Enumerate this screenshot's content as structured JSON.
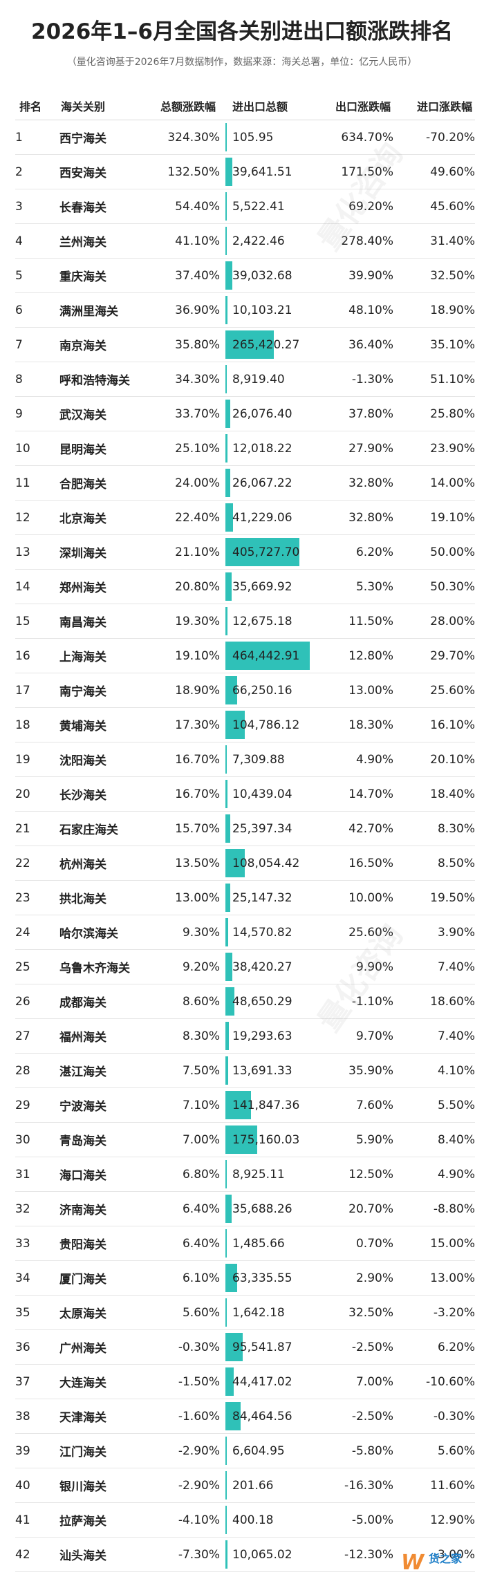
{
  "title": "2026年1–6月全国各关别进出口额涨跌排名",
  "subtitle": "（量化咨询基于2026年7月数据制作，数据来源：海关总署，单位：亿元人民币）",
  "headers": {
    "rank": "排名",
    "name": "海关关别",
    "total_change": "总额涨跌幅",
    "total_value": "进出口总额",
    "export_change": "出口涨跌幅",
    "import_change": "进口涨跌幅"
  },
  "colors": {
    "bar": "#2fc1b8",
    "rank_text": "#2aa9a5"
  },
  "bar_max_value": 464442.91,
  "rows": [
    {
      "rank": "1",
      "name": "西宁海关",
      "total_change": "324.30%",
      "value": 105.95,
      "value_text": "105.95",
      "export": "634.70%",
      "import": "-70.20%"
    },
    {
      "rank": "2",
      "name": "西安海关",
      "total_change": "132.50%",
      "value": 39641.51,
      "value_text": "39,641.51",
      "export": "171.50%",
      "import": "49.60%"
    },
    {
      "rank": "3",
      "name": "长春海关",
      "total_change": "54.40%",
      "value": 5522.41,
      "value_text": "5,522.41",
      "export": "69.20%",
      "import": "45.60%"
    },
    {
      "rank": "4",
      "name": "兰州海关",
      "total_change": "41.10%",
      "value": 2422.46,
      "value_text": "2,422.46",
      "export": "278.40%",
      "import": "31.40%"
    },
    {
      "rank": "5",
      "name": "重庆海关",
      "total_change": "37.40%",
      "value": 39032.68,
      "value_text": "39,032.68",
      "export": "39.90%",
      "import": "32.50%"
    },
    {
      "rank": "6",
      "name": "满洲里海关",
      "total_change": "36.90%",
      "value": 10103.21,
      "value_text": "10,103.21",
      "export": "48.10%",
      "import": "18.90%"
    },
    {
      "rank": "7",
      "name": "南京海关",
      "total_change": "35.80%",
      "value": 265420.27,
      "value_text": "265,420.27",
      "export": "36.40%",
      "import": "35.10%"
    },
    {
      "rank": "8",
      "name": "呼和浩特海关",
      "total_change": "34.30%",
      "value": 8919.4,
      "value_text": "8,919.40",
      "export": "-1.30%",
      "import": "51.10%"
    },
    {
      "rank": "9",
      "name": "武汉海关",
      "total_change": "33.70%",
      "value": 26076.4,
      "value_text": "26,076.40",
      "export": "37.80%",
      "import": "25.80%"
    },
    {
      "rank": "10",
      "name": "昆明海关",
      "total_change": "25.10%",
      "value": 12018.22,
      "value_text": "12,018.22",
      "export": "27.90%",
      "import": "23.90%"
    },
    {
      "rank": "11",
      "name": "合肥海关",
      "total_change": "24.00%",
      "value": 26067.22,
      "value_text": "26,067.22",
      "export": "32.80%",
      "import": "14.00%"
    },
    {
      "rank": "12",
      "name": "北京海关",
      "total_change": "22.40%",
      "value": 41229.06,
      "value_text": "41,229.06",
      "export": "32.80%",
      "import": "19.10%"
    },
    {
      "rank": "13",
      "name": "深圳海关",
      "total_change": "21.10%",
      "value": 405727.7,
      "value_text": "405,727.70",
      "export": "6.20%",
      "import": "50.00%"
    },
    {
      "rank": "14",
      "name": "郑州海关",
      "total_change": "20.80%",
      "value": 35669.92,
      "value_text": "35,669.92",
      "export": "5.30%",
      "import": "50.30%"
    },
    {
      "rank": "15",
      "name": "南昌海关",
      "total_change": "19.30%",
      "value": 12675.18,
      "value_text": "12,675.18",
      "export": "11.50%",
      "import": "28.00%"
    },
    {
      "rank": "16",
      "name": "上海海关",
      "total_change": "19.10%",
      "value": 464442.91,
      "value_text": "464,442.91",
      "export": "12.80%",
      "import": "29.70%"
    },
    {
      "rank": "17",
      "name": "南宁海关",
      "total_change": "18.90%",
      "value": 66250.16,
      "value_text": "66,250.16",
      "export": "13.00%",
      "import": "25.60%"
    },
    {
      "rank": "18",
      "name": "黄埔海关",
      "total_change": "17.30%",
      "value": 104786.12,
      "value_text": "104,786.12",
      "export": "18.30%",
      "import": "16.10%"
    },
    {
      "rank": "19",
      "name": "沈阳海关",
      "total_change": "16.70%",
      "value": 7309.88,
      "value_text": "7,309.88",
      "export": "4.90%",
      "import": "20.10%"
    },
    {
      "rank": "20",
      "name": "长沙海关",
      "total_change": "16.70%",
      "value": 10439.04,
      "value_text": "10,439.04",
      "export": "14.70%",
      "import": "18.40%"
    },
    {
      "rank": "21",
      "name": "石家庄海关",
      "total_change": "15.70%",
      "value": 25397.34,
      "value_text": "25,397.34",
      "export": "42.70%",
      "import": "8.30%"
    },
    {
      "rank": "22",
      "name": "杭州海关",
      "total_change": "13.50%",
      "value": 108054.42,
      "value_text": "108,054.42",
      "export": "16.50%",
      "import": "8.50%"
    },
    {
      "rank": "23",
      "name": "拱北海关",
      "total_change": "13.00%",
      "value": 25147.32,
      "value_text": "25,147.32",
      "export": "10.00%",
      "import": "19.50%"
    },
    {
      "rank": "24",
      "name": "哈尔滨海关",
      "total_change": "9.30%",
      "value": 14570.82,
      "value_text": "14,570.82",
      "export": "25.60%",
      "import": "3.90%"
    },
    {
      "rank": "25",
      "name": "乌鲁木齐海关",
      "total_change": "9.20%",
      "value": 38420.27,
      "value_text": "38,420.27",
      "export": "9.90%",
      "import": "7.40%"
    },
    {
      "rank": "26",
      "name": "成都海关",
      "total_change": "8.60%",
      "value": 48650.29,
      "value_text": "48,650.29",
      "export": "-1.10%",
      "import": "18.60%"
    },
    {
      "rank": "27",
      "name": "福州海关",
      "total_change": "8.30%",
      "value": 19293.63,
      "value_text": "19,293.63",
      "export": "9.70%",
      "import": "7.40%"
    },
    {
      "rank": "28",
      "name": "湛江海关",
      "total_change": "7.50%",
      "value": 13691.33,
      "value_text": "13,691.33",
      "export": "35.90%",
      "import": "4.10%"
    },
    {
      "rank": "29",
      "name": "宁波海关",
      "total_change": "7.10%",
      "value": 141847.36,
      "value_text": "141,847.36",
      "export": "7.60%",
      "import": "5.50%"
    },
    {
      "rank": "30",
      "name": "青岛海关",
      "total_change": "7.00%",
      "value": 175160.03,
      "value_text": "175,160.03",
      "export": "5.90%",
      "import": "8.40%"
    },
    {
      "rank": "31",
      "name": "海口海关",
      "total_change": "6.80%",
      "value": 8925.11,
      "value_text": "8,925.11",
      "export": "12.50%",
      "import": "4.90%"
    },
    {
      "rank": "32",
      "name": "济南海关",
      "total_change": "6.40%",
      "value": 35688.26,
      "value_text": "35,688.26",
      "export": "20.70%",
      "import": "-8.80%"
    },
    {
      "rank": "33",
      "name": "贵阳海关",
      "total_change": "6.40%",
      "value": 1485.66,
      "value_text": "1,485.66",
      "export": "0.70%",
      "import": "15.00%"
    },
    {
      "rank": "34",
      "name": "厦门海关",
      "total_change": "6.10%",
      "value": 63335.55,
      "value_text": "63,335.55",
      "export": "2.90%",
      "import": "13.00%"
    },
    {
      "rank": "35",
      "name": "太原海关",
      "total_change": "5.60%",
      "value": 1642.18,
      "value_text": "1,642.18",
      "export": "32.50%",
      "import": "-3.20%"
    },
    {
      "rank": "36",
      "name": "广州海关",
      "total_change": "-0.30%",
      "value": 95541.87,
      "value_text": "95,541.87",
      "export": "-2.50%",
      "import": "6.20%"
    },
    {
      "rank": "37",
      "name": "大连海关",
      "total_change": "-1.50%",
      "value": 44417.02,
      "value_text": "44,417.02",
      "export": "7.00%",
      "import": "-10.60%"
    },
    {
      "rank": "38",
      "name": "天津海关",
      "total_change": "-1.60%",
      "value": 84464.56,
      "value_text": "84,464.56",
      "export": "-2.50%",
      "import": "-0.30%"
    },
    {
      "rank": "39",
      "name": "江门海关",
      "total_change": "-2.90%",
      "value": 6604.95,
      "value_text": "6,604.95",
      "export": "-5.80%",
      "import": "5.60%"
    },
    {
      "rank": "40",
      "name": "银川海关",
      "total_change": "-2.90%",
      "value": 201.66,
      "value_text": "201.66",
      "export": "-16.30%",
      "import": "11.60%"
    },
    {
      "rank": "41",
      "name": "拉萨海关",
      "total_change": "-4.10%",
      "value": 400.18,
      "value_text": "400.18",
      "export": "-5.00%",
      "import": "12.90%"
    },
    {
      "rank": "42",
      "name": "汕头海关",
      "total_change": "-7.30%",
      "value": 10065.02,
      "value_text": "10,065.02",
      "export": "-12.30%",
      "import": "-3.00%"
    }
  ],
  "watermark": "量化咨询",
  "logo": {
    "mark": "W",
    "text": "货之家"
  }
}
